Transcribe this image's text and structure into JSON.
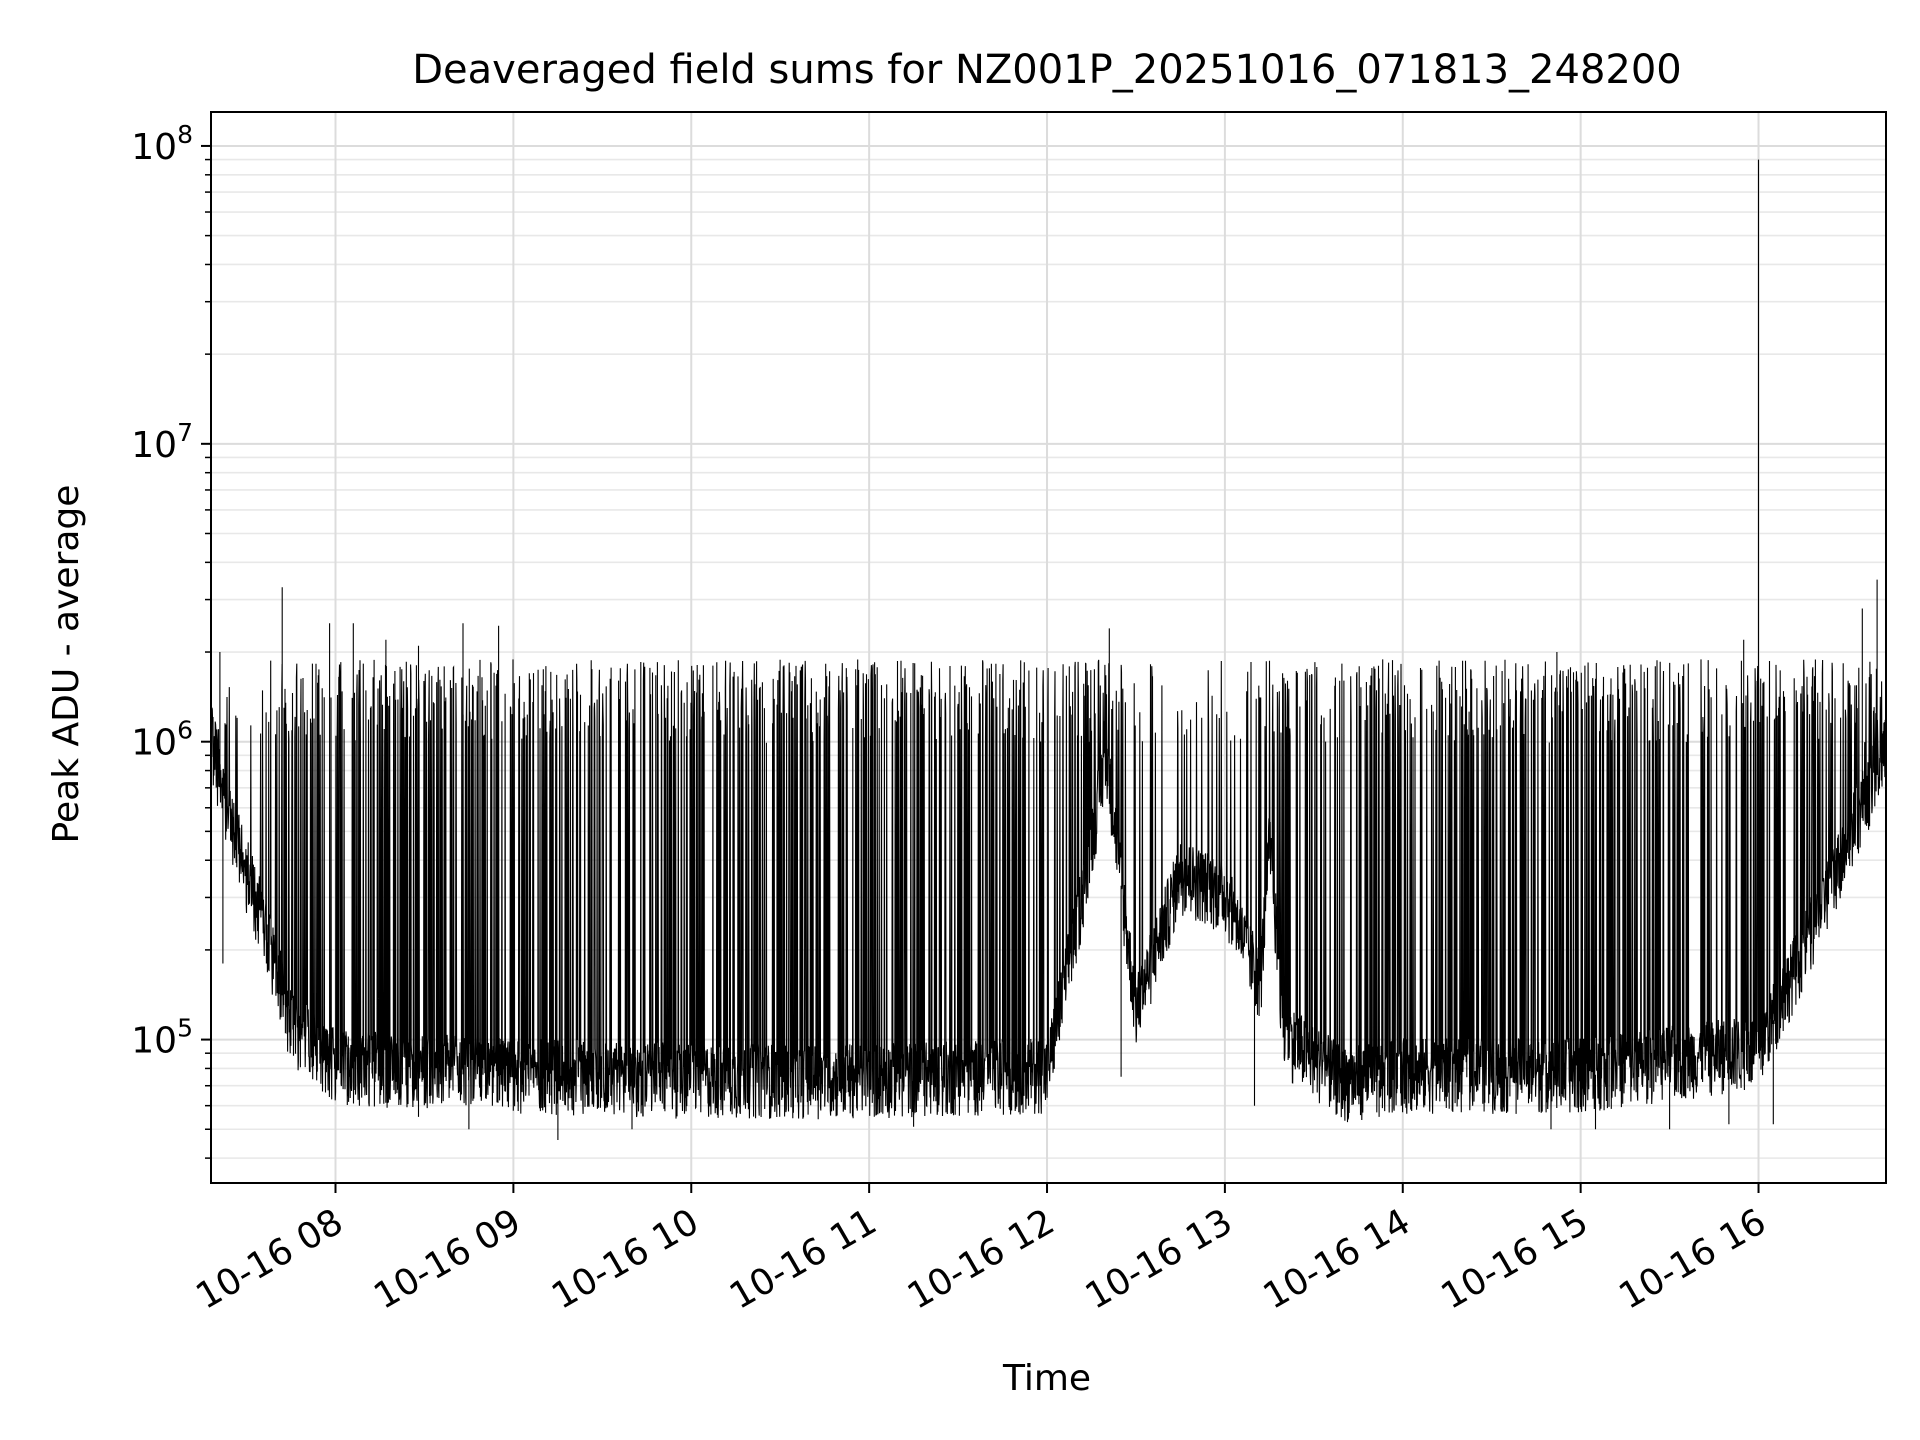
{
  "chart_data": {
    "type": "line",
    "title": "Deaveraged field sums for NZ001P_20251016_071813_248200",
    "xlabel": "Time",
    "ylabel": "Peak ADU - average",
    "yscale": "log",
    "grid": true,
    "xlim": [
      "2025-10-16 07:18",
      "2025-10-16 16:43"
    ],
    "ylim": [
      33000,
      130000000
    ],
    "x_ticks": [
      "10-16 08",
      "10-16 09",
      "10-16 10",
      "10-16 11",
      "10-16 12",
      "10-16 13",
      "10-16 14",
      "10-16 15",
      "10-16 16"
    ],
    "y_ticks": [
      {
        "value": 100000,
        "base": "10",
        "exp": "5"
      },
      {
        "value": 1000000,
        "base": "10",
        "exp": "6"
      },
      {
        "value": 10000000,
        "base": "10",
        "exp": "7"
      },
      {
        "value": 100000000,
        "base": "10",
        "exp": "8"
      }
    ],
    "series": [
      {
        "line_color": "#000000",
        "baseline_profile": [
          {
            "x": "2025-10-16 07:18",
            "y": 1000000
          },
          {
            "x": "2025-10-16 07:25",
            "y": 500000
          },
          {
            "x": "2025-10-16 07:35",
            "y": 250000
          },
          {
            "x": "2025-10-16 07:45",
            "y": 110000
          },
          {
            "x": "2025-10-16 08:00",
            "y": 80000
          },
          {
            "x": "2025-10-16 09:00",
            "y": 75000
          },
          {
            "x": "2025-10-16 10:00",
            "y": 72000
          },
          {
            "x": "2025-10-16 11:00",
            "y": 72000
          },
          {
            "x": "2025-10-16 12:00",
            "y": 75000
          },
          {
            "x": "2025-10-16 12:12",
            "y": 300000
          },
          {
            "x": "2025-10-16 12:20",
            "y": 900000
          },
          {
            "x": "2025-10-16 12:30",
            "y": 120000
          },
          {
            "x": "2025-10-16 12:45",
            "y": 350000
          },
          {
            "x": "2025-10-16 13:00",
            "y": 300000
          },
          {
            "x": "2025-10-16 13:12",
            "y": 150000
          },
          {
            "x": "2025-10-16 13:15",
            "y": 450000
          },
          {
            "x": "2025-10-16 13:20",
            "y": 100000
          },
          {
            "x": "2025-10-16 13:40",
            "y": 70000
          },
          {
            "x": "2025-10-16 14:00",
            "y": 75000
          },
          {
            "x": "2025-10-16 15:00",
            "y": 75000
          },
          {
            "x": "2025-10-16 16:00",
            "y": 90000
          },
          {
            "x": "2025-10-16 16:20",
            "y": 250000
          },
          {
            "x": "2025-10-16 16:35",
            "y": 600000
          },
          {
            "x": "2025-10-16 16:43",
            "y": 900000
          }
        ],
        "typical_peak": 1800000,
        "dense_gap": [
          "2025-10-16 12:25",
          "2025-10-16 13:15"
        ],
        "spikes": [
          {
            "x": "2025-10-16 07:21",
            "y": 2000000
          },
          {
            "x": "2025-10-16 07:42",
            "y": 3300000
          },
          {
            "x": "2025-10-16 07:58",
            "y": 2500000
          },
          {
            "x": "2025-10-16 08:06",
            "y": 2500000
          },
          {
            "x": "2025-10-16 08:17",
            "y": 2200000
          },
          {
            "x": "2025-10-16 08:28",
            "y": 2100000
          },
          {
            "x": "2025-10-16 08:43",
            "y": 2500000
          },
          {
            "x": "2025-10-16 08:55",
            "y": 2450000
          },
          {
            "x": "2025-10-16 12:21",
            "y": 2400000
          },
          {
            "x": "2025-10-16 14:52",
            "y": 2000000
          },
          {
            "x": "2025-10-16 15:55",
            "y": 2200000
          },
          {
            "x": "2025-10-16 16:00",
            "y": 90000000
          },
          {
            "x": "2025-10-16 16:35",
            "y": 2800000
          },
          {
            "x": "2025-10-16 16:40",
            "y": 3500000
          }
        ],
        "dips": [
          {
            "x": "2025-10-16 07:22",
            "y": 180000
          },
          {
            "x": "2025-10-16 08:28",
            "y": 55000
          },
          {
            "x": "2025-10-16 08:45",
            "y": 50000
          },
          {
            "x": "2025-10-16 09:15",
            "y": 46000
          },
          {
            "x": "2025-10-16 09:40",
            "y": 50000
          },
          {
            "x": "2025-10-16 11:15",
            "y": 51000
          },
          {
            "x": "2025-10-16 12:25",
            "y": 75000
          },
          {
            "x": "2025-10-16 13:10",
            "y": 60000
          },
          {
            "x": "2025-10-16 13:52",
            "y": 55000
          },
          {
            "x": "2025-10-16 14:50",
            "y": 50000
          },
          {
            "x": "2025-10-16 15:05",
            "y": 50000
          },
          {
            "x": "2025-10-16 15:30",
            "y": 50000
          },
          {
            "x": "2025-10-16 15:50",
            "y": 52000
          },
          {
            "x": "2025-10-16 16:05",
            "y": 52000
          }
        ]
      }
    ]
  }
}
